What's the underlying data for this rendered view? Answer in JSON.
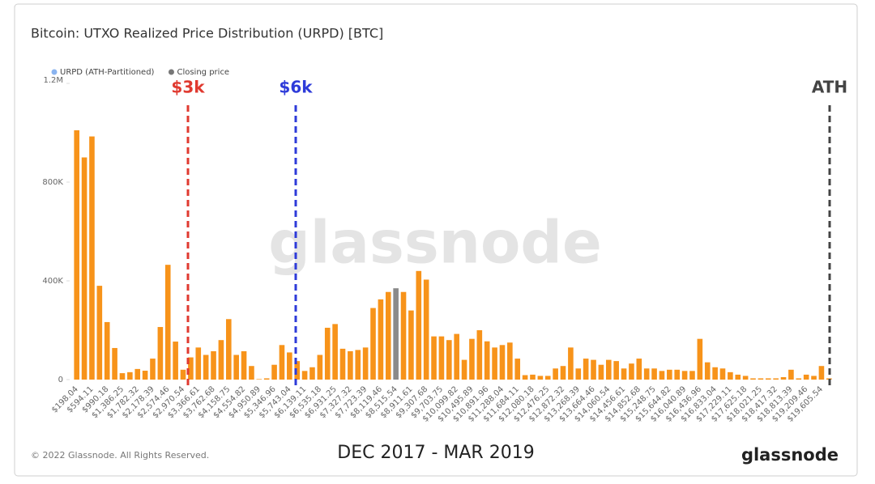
{
  "chart_data": {
    "type": "bar",
    "title": "Bitcoin: UTXO Realized Price Distribution (URPD) [BTC]",
    "watermark": "glassnode",
    "annotations": [
      "$3k",
      "$6k",
      "ATH"
    ],
    "annotation_colors": [
      "#e03a30",
      "#2e3bd9",
      "#444444"
    ],
    "categories": [
      "$198.04",
      null,
      "$594.11",
      null,
      "$990.18",
      null,
      "$1,386.25",
      null,
      "$1,782.32",
      null,
      "$2,178.39",
      null,
      "$2,574.46",
      null,
      "$2,970.54",
      null,
      "$3,366.61",
      null,
      "$3,762.68",
      null,
      "$4,158.75",
      null,
      "$4,554.82",
      null,
      "$4,950.89",
      null,
      "$5,346.96",
      null,
      "$5,743.04",
      null,
      "$6,139.11",
      null,
      "$6,535.18",
      null,
      "$6,931.25",
      null,
      "$7,327.32",
      null,
      "$7,723.39",
      null,
      "$8,119.46",
      null,
      "$8,515.54",
      null,
      "$8,911.61",
      null,
      "$9,307.68",
      null,
      "$9,703.75",
      null,
      "$10,099.82",
      null,
      "$10,495.89",
      null,
      "$10,891.96",
      null,
      "$11,288.04",
      null,
      "$11,684.11",
      null,
      "$12,080.18",
      null,
      "$12,476.25",
      null,
      "$12,872.32",
      null,
      "$13,268.39",
      null,
      "$13,664.46",
      null,
      "$14,060.54",
      null,
      "$14,456.61",
      null,
      "$14,852.68",
      null,
      "$15,248.75",
      null,
      "$15,644.82",
      null,
      "$16,040.89",
      null,
      "$16,436.96",
      null,
      "$16,833.04",
      null,
      "$17,229.11",
      null,
      "$17,625.18",
      null,
      "$18,021.25",
      null,
      "$18,417.32",
      null,
      "$18,813.39",
      null,
      "$19,209.46",
      null,
      "$19,605.54",
      null
    ],
    "series": [
      {
        "name": "URPD (ATH-Partitioned)",
        "color": "#f7931a",
        "marker_color": "#8ab4f0",
        "values": [
          1010000,
          900000,
          985000,
          380000,
          233000,
          128000,
          26000,
          30000,
          43000,
          36000,
          85000,
          213000,
          465000,
          154000,
          40000,
          90000,
          130000,
          100000,
          115000,
          160000,
          245000,
          100000,
          115000,
          55000,
          2000,
          5000,
          60000,
          140000,
          110000,
          75000,
          35000,
          50000,
          100000,
          210000,
          225000,
          125000,
          115000,
          120000,
          130000,
          290000,
          325000,
          355000,
          null,
          355000,
          280000,
          440000,
          405000,
          175000,
          175000,
          160000,
          185000,
          80000,
          165000,
          200000,
          155000,
          130000,
          140000,
          150000,
          85000,
          18000,
          20000,
          15000,
          15000,
          45000,
          55000,
          130000,
          45000,
          85000,
          80000,
          60000,
          80000,
          75000,
          45000,
          65000,
          85000,
          45000,
          45000,
          35000,
          40000,
          40000,
          35000,
          35000,
          165000,
          70000,
          50000,
          45000,
          30000,
          20000,
          15000,
          5000,
          5000,
          5000,
          5000,
          10000,
          40000,
          5000,
          20000,
          15000,
          55000,
          5000
        ]
      },
      {
        "name": "Closing price",
        "color": "#8a8a8a",
        "marker_color": "#777777",
        "values": [
          null,
          null,
          null,
          null,
          null,
          null,
          null,
          null,
          null,
          null,
          null,
          null,
          null,
          null,
          null,
          null,
          null,
          null,
          null,
          null,
          null,
          null,
          null,
          null,
          null,
          null,
          null,
          null,
          null,
          null,
          null,
          null,
          null,
          null,
          null,
          null,
          null,
          null,
          null,
          null,
          null,
          null,
          370000,
          null,
          null,
          null,
          null,
          null,
          null,
          null,
          null,
          null,
          null,
          null,
          null,
          null,
          null,
          null,
          null,
          null,
          null,
          null,
          null,
          null,
          null,
          null,
          null,
          null,
          null,
          null,
          null,
          null,
          null,
          null,
          null,
          null,
          null,
          null,
          null,
          null,
          null,
          null,
          null,
          null,
          null,
          null,
          null,
          null,
          null,
          null,
          null,
          null,
          null,
          null,
          null,
          null,
          null,
          null,
          null,
          null
        ]
      }
    ],
    "ylim": [
      0,
      1200000
    ],
    "yticks": [
      0,
      {
        "value": 400000,
        "label": "400K"
      },
      {
        "value": 800000,
        "label": "800K"
      },
      {
        "value": 1200000,
        "label": "1.2M"
      }
    ],
    "grid": false
  },
  "footer": {
    "copyright": "© 2022 Glassnode. All Rights Reserved.",
    "period": "DEC 2017 - MAR 2019",
    "logo": "glassnode"
  }
}
